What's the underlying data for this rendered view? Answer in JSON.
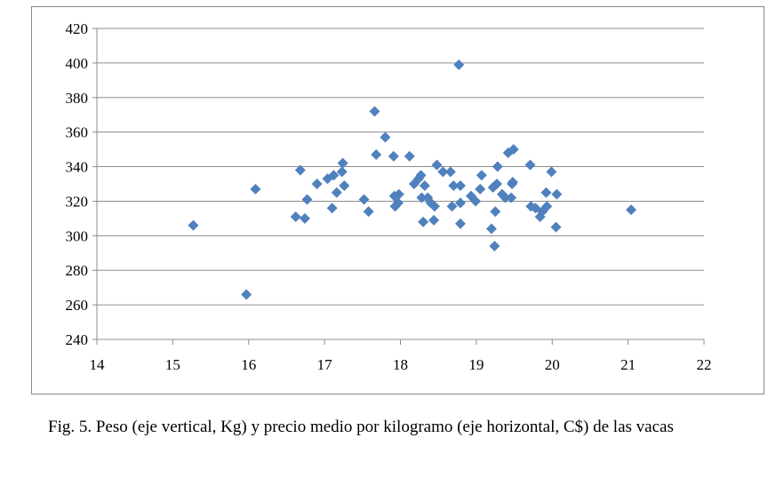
{
  "chart_data": {
    "type": "scatter",
    "title": "",
    "xlabel": "",
    "ylabel": "",
    "xlim": [
      14,
      22
    ],
    "ylim": [
      240,
      420
    ],
    "x_ticks": [
      14,
      15,
      16,
      17,
      18,
      19,
      20,
      21,
      22
    ],
    "y_ticks": [
      240,
      260,
      280,
      300,
      320,
      340,
      360,
      380,
      400,
      420
    ],
    "grid": "horizontal",
    "legend": "none",
    "marker": "diamond",
    "marker_color": "#4f81bd",
    "points": [
      [
        15.27,
        306
      ],
      [
        15.97,
        266
      ],
      [
        16.09,
        327
      ],
      [
        16.62,
        311
      ],
      [
        16.68,
        338
      ],
      [
        16.74,
        310
      ],
      [
        16.77,
        321
      ],
      [
        16.9,
        330
      ],
      [
        17.04,
        333
      ],
      [
        17.1,
        316
      ],
      [
        17.12,
        335
      ],
      [
        17.16,
        325
      ],
      [
        17.23,
        337
      ],
      [
        17.24,
        342
      ],
      [
        17.26,
        329
      ],
      [
        17.52,
        321
      ],
      [
        17.58,
        314
      ],
      [
        17.66,
        372
      ],
      [
        17.68,
        347
      ],
      [
        17.8,
        357
      ],
      [
        17.91,
        346
      ],
      [
        17.92,
        323
      ],
      [
        17.93,
        317
      ],
      [
        17.97,
        319
      ],
      [
        17.98,
        324
      ],
      [
        18.12,
        346
      ],
      [
        18.18,
        330
      ],
      [
        18.24,
        333
      ],
      [
        18.27,
        335
      ],
      [
        18.28,
        322
      ],
      [
        18.3,
        308
      ],
      [
        18.32,
        329
      ],
      [
        18.36,
        322
      ],
      [
        18.4,
        319
      ],
      [
        18.44,
        309
      ],
      [
        18.45,
        317
      ],
      [
        18.48,
        341
      ],
      [
        18.56,
        337
      ],
      [
        18.66,
        337
      ],
      [
        18.68,
        317
      ],
      [
        18.7,
        329
      ],
      [
        18.77,
        399
      ],
      [
        18.79,
        307
      ],
      [
        18.79,
        319
      ],
      [
        18.79,
        329
      ],
      [
        18.93,
        323
      ],
      [
        18.99,
        320
      ],
      [
        19.05,
        327
      ],
      [
        19.07,
        335
      ],
      [
        19.2,
        304
      ],
      [
        19.22,
        328
      ],
      [
        19.24,
        294
      ],
      [
        19.25,
        314
      ],
      [
        19.27,
        330
      ],
      [
        19.28,
        340
      ],
      [
        19.34,
        324
      ],
      [
        19.38,
        322
      ],
      [
        19.42,
        348
      ],
      [
        19.46,
        322
      ],
      [
        19.47,
        330
      ],
      [
        19.48,
        331
      ],
      [
        19.49,
        350
      ],
      [
        19.71,
        341
      ],
      [
        19.72,
        317
      ],
      [
        19.78,
        316
      ],
      [
        19.84,
        311
      ],
      [
        19.87,
        314
      ],
      [
        19.92,
        325
      ],
      [
        19.93,
        317
      ],
      [
        19.99,
        337
      ],
      [
        20.05,
        305
      ],
      [
        20.06,
        324
      ],
      [
        21.04,
        315
      ]
    ]
  },
  "caption": "Fig. 5. Peso (eje vertical, Kg) y precio medio por kilogramo (eje horizontal, C$) de las vacas"
}
